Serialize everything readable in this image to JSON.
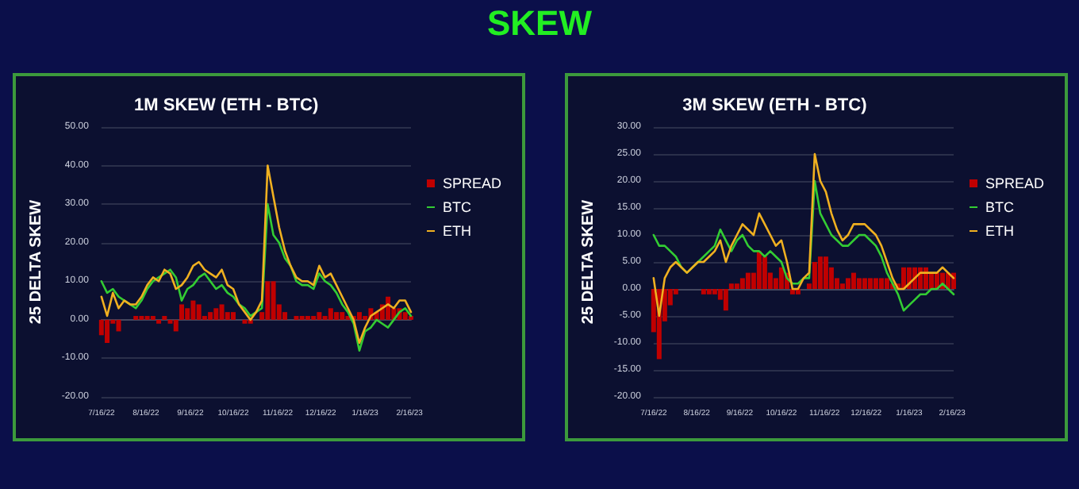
{
  "chart_data": [
    {
      "type": "other",
      "title": "SKEW"
    },
    {
      "type": "line",
      "title": "1M SKEW (ETH - BTC)",
      "ylabel": "25 DELTA SKEW",
      "x": [
        "2022-07-16",
        "2022-07-20",
        "2022-07-24",
        "2022-07-28",
        "2022-08-01",
        "2022-08-05",
        "2022-08-09",
        "2022-08-13",
        "2022-08-17",
        "2022-08-21",
        "2022-08-25",
        "2022-08-29",
        "2022-09-02",
        "2022-09-06",
        "2022-09-10",
        "2022-09-14",
        "2022-09-18",
        "2022-09-22",
        "2022-09-26",
        "2022-09-30",
        "2022-10-04",
        "2022-10-08",
        "2022-10-12",
        "2022-10-16",
        "2022-10-20",
        "2022-10-24",
        "2022-10-28",
        "2022-11-01",
        "2022-11-05",
        "2022-11-09",
        "2022-11-13",
        "2022-11-17",
        "2022-11-21",
        "2022-11-25",
        "2022-11-29",
        "2022-12-03",
        "2022-12-07",
        "2022-12-11",
        "2022-12-15",
        "2022-12-19",
        "2022-12-23",
        "2022-12-27",
        "2022-12-31",
        "2023-01-04",
        "2023-01-08",
        "2023-01-12",
        "2023-01-16",
        "2023-01-20",
        "2023-01-24",
        "2023-01-28",
        "2023-02-01",
        "2023-02-05",
        "2023-02-09",
        "2023-02-13",
        "2023-02-17"
      ],
      "series": [
        {
          "name": "SPREAD",
          "type": "bar",
          "color": "#c00000",
          "values": [
            -4,
            -6,
            -1,
            -3,
            0,
            0,
            1,
            1,
            1,
            1,
            -1,
            1,
            -1,
            -3,
            4,
            3,
            5,
            4,
            1,
            2,
            3,
            4,
            2,
            2,
            0,
            -1,
            -1,
            0,
            2,
            10,
            10,
            4,
            2,
            0,
            1,
            1,
            1,
            1,
            2,
            1,
            3,
            2,
            2,
            1,
            1,
            2,
            1,
            3,
            2,
            4,
            6,
            3,
            3,
            2,
            1
          ]
        },
        {
          "name": "BTC",
          "color": "#33cc33",
          "values": [
            10,
            7,
            8,
            6,
            5,
            4,
            3,
            5,
            8,
            10,
            11,
            12,
            13,
            11,
            5,
            8,
            9,
            11,
            12,
            10,
            8,
            9,
            7,
            6,
            4,
            3,
            1,
            2,
            3,
            30,
            22,
            20,
            16,
            14,
            10,
            9,
            9,
            8,
            12,
            10,
            9,
            7,
            4,
            2,
            -1,
            -8,
            -3,
            -2,
            0,
            -1,
            -2,
            0,
            2,
            3,
            1
          ]
        },
        {
          "name": "ETH",
          "color": "#f0b020",
          "values": [
            6,
            1,
            7,
            3,
            5,
            4,
            4,
            6,
            9,
            11,
            10,
            13,
            12,
            8,
            9,
            11,
            14,
            15,
            13,
            12,
            11,
            13,
            9,
            8,
            4,
            2,
            0,
            2,
            5,
            40,
            32,
            24,
            18,
            14,
            11,
            10,
            10,
            9,
            14,
            11,
            12,
            9,
            6,
            3,
            0,
            -6,
            -2,
            1,
            2,
            3,
            4,
            3,
            5,
            5,
            2
          ]
        }
      ],
      "xlim": [
        "2022-07-16",
        "2023-02-17"
      ],
      "xticks": [
        {
          "value": "2022-07-16",
          "label": "7/16/22"
        },
        {
          "value": "2022-08-16",
          "label": "8/16/22"
        },
        {
          "value": "2022-09-16",
          "label": "9/16/22"
        },
        {
          "value": "2022-10-16",
          "label": "10/16/22"
        },
        {
          "value": "2022-11-16",
          "label": "11/16/22"
        },
        {
          "value": "2022-12-16",
          "label": "12/16/22"
        },
        {
          "value": "2023-01-16",
          "label": "1/16/23"
        },
        {
          "value": "2023-02-16",
          "label": "2/16/23"
        }
      ],
      "ylim": [
        -20,
        50
      ],
      "yticks": [
        {
          "value": -20,
          "label": "-20.00"
        },
        {
          "value": -10,
          "label": "-10.00"
        },
        {
          "value": 0,
          "label": "0.00"
        },
        {
          "value": 10,
          "label": "10.00"
        },
        {
          "value": 20,
          "label": "20.00"
        },
        {
          "value": 30,
          "label": "30.00"
        },
        {
          "value": 40,
          "label": "40.00"
        },
        {
          "value": 50,
          "label": "50.00"
        }
      ],
      "grid": "y",
      "legend": "right",
      "marker": "none",
      "line_style": "solid"
    },
    {
      "type": "line",
      "title": "3M SKEW (ETH - BTC)",
      "ylabel": "25 DELTA SKEW",
      "x": [
        "2022-07-16",
        "2022-07-20",
        "2022-07-24",
        "2022-07-28",
        "2022-08-01",
        "2022-08-05",
        "2022-08-09",
        "2022-08-13",
        "2022-08-17",
        "2022-08-21",
        "2022-08-25",
        "2022-08-29",
        "2022-09-02",
        "2022-09-06",
        "2022-09-10",
        "2022-09-14",
        "2022-09-18",
        "2022-09-22",
        "2022-09-26",
        "2022-09-30",
        "2022-10-04",
        "2022-10-08",
        "2022-10-12",
        "2022-10-16",
        "2022-10-20",
        "2022-10-24",
        "2022-10-28",
        "2022-11-01",
        "2022-11-05",
        "2022-11-09",
        "2022-11-13",
        "2022-11-17",
        "2022-11-21",
        "2022-11-25",
        "2022-11-29",
        "2022-12-03",
        "2022-12-07",
        "2022-12-11",
        "2022-12-15",
        "2022-12-19",
        "2022-12-23",
        "2022-12-27",
        "2022-12-31",
        "2023-01-04",
        "2023-01-08",
        "2023-01-12",
        "2023-01-16",
        "2023-01-20",
        "2023-01-24",
        "2023-01-28",
        "2023-02-01",
        "2023-02-05",
        "2023-02-09",
        "2023-02-13",
        "2023-02-17"
      ],
      "series": [
        {
          "name": "SPREAD",
          "type": "bar",
          "color": "#c00000",
          "values": [
            -8,
            -13,
            -6,
            -3,
            -1,
            0,
            0,
            0,
            0,
            -1,
            -1,
            -1,
            -2,
            -4,
            1,
            1,
            2,
            3,
            3,
            7,
            6,
            3,
            2,
            4,
            3,
            -1,
            -1,
            0,
            1,
            5,
            6,
            6,
            4,
            2,
            1,
            2,
            3,
            2,
            2,
            2,
            2,
            2,
            2,
            1,
            1,
            4,
            4,
            4,
            4,
            4,
            3,
            3,
            3,
            3,
            3
          ]
        },
        {
          "name": "BTC",
          "color": "#33cc33",
          "values": [
            10,
            8,
            8,
            7,
            6,
            4,
            3,
            4,
            5,
            6,
            7,
            8,
            11,
            9,
            7,
            9,
            10,
            8,
            7,
            7,
            6,
            7,
            6,
            5,
            2,
            1,
            1,
            2,
            2,
            20,
            14,
            12,
            10,
            9,
            8,
            8,
            9,
            10,
            10,
            9,
            8,
            6,
            3,
            1,
            -1,
            -4,
            -3,
            -2,
            -1,
            -1,
            0,
            0,
            1,
            0,
            -1
          ]
        },
        {
          "name": "ETH",
          "color": "#f0b020",
          "values": [
            2,
            -5,
            2,
            4,
            5,
            4,
            3,
            4,
            5,
            5,
            6,
            7,
            9,
            5,
            8,
            10,
            12,
            11,
            10,
            14,
            12,
            10,
            8,
            9,
            5,
            0,
            0,
            2,
            3,
            25,
            20,
            18,
            14,
            11,
            9,
            10,
            12,
            12,
            12,
            11,
            10,
            8,
            5,
            2,
            0,
            0,
            1,
            2,
            3,
            3,
            3,
            3,
            4,
            3,
            2
          ]
        }
      ],
      "xlim": [
        "2022-07-16",
        "2023-02-17"
      ],
      "xticks": [
        {
          "value": "2022-07-16",
          "label": "7/16/22"
        },
        {
          "value": "2022-08-16",
          "label": "8/16/22"
        },
        {
          "value": "2022-09-16",
          "label": "9/16/22"
        },
        {
          "value": "2022-10-16",
          "label": "10/16/22"
        },
        {
          "value": "2022-11-16",
          "label": "11/16/22"
        },
        {
          "value": "2022-12-16",
          "label": "12/16/22"
        },
        {
          "value": "2023-01-16",
          "label": "1/16/23"
        },
        {
          "value": "2023-02-16",
          "label": "2/16/23"
        }
      ],
      "ylim": [
        -20,
        30
      ],
      "yticks": [
        {
          "value": -20,
          "label": "-20.00"
        },
        {
          "value": -15,
          "label": "-15.00"
        },
        {
          "value": -10,
          "label": "-10.00"
        },
        {
          "value": -5,
          "label": "-5.00"
        },
        {
          "value": 0,
          "label": "0.00"
        },
        {
          "value": 5,
          "label": "5.00"
        },
        {
          "value": 10,
          "label": "10.00"
        },
        {
          "value": 15,
          "label": "15.00"
        },
        {
          "value": 20,
          "label": "20.00"
        },
        {
          "value": 25,
          "label": "25.00"
        },
        {
          "value": 30,
          "label": "30.00"
        }
      ],
      "grid": "y",
      "legend": "right",
      "marker": "none",
      "line_style": "solid"
    }
  ]
}
